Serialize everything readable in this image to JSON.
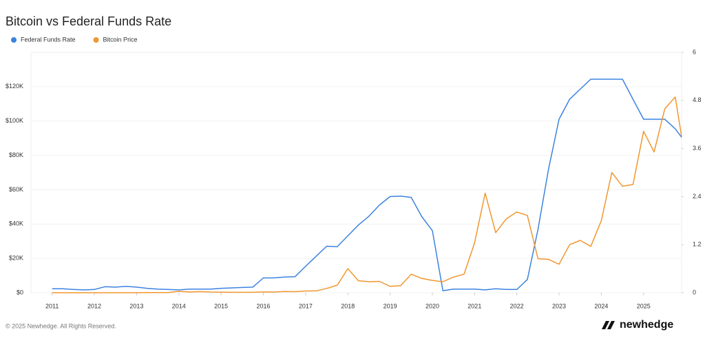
{
  "chart_data": {
    "type": "line",
    "title": "Bitcoin vs Federal Funds Rate",
    "x": [
      2011.0,
      2011.25,
      2011.5,
      2011.75,
      2012.0,
      2012.25,
      2012.5,
      2012.75,
      2013.0,
      2013.25,
      2013.5,
      2013.75,
      2014.0,
      2014.25,
      2014.5,
      2014.75,
      2015.0,
      2015.25,
      2015.5,
      2015.75,
      2016.0,
      2016.25,
      2016.5,
      2016.75,
      2017.0,
      2017.25,
      2017.5,
      2017.75,
      2018.0,
      2018.25,
      2018.5,
      2018.75,
      2019.0,
      2019.25,
      2019.5,
      2019.75,
      2020.0,
      2020.25,
      2020.5,
      2020.75,
      2021.0,
      2021.25,
      2021.5,
      2021.75,
      2022.0,
      2022.25,
      2022.5,
      2022.75,
      2023.0,
      2023.25,
      2023.5,
      2023.75,
      2024.0,
      2024.25,
      2024.5,
      2024.75,
      2025.0,
      2025.25,
      2025.5,
      2025.75,
      2025.9
    ],
    "series": [
      {
        "name": "Federal Funds Rate",
        "color": "#3b82e0",
        "axis": "y2",
        "values": [
          0.1,
          0.1,
          0.08,
          0.07,
          0.08,
          0.15,
          0.14,
          0.16,
          0.14,
          0.11,
          0.09,
          0.08,
          0.07,
          0.09,
          0.09,
          0.09,
          0.11,
          0.12,
          0.13,
          0.14,
          0.37,
          0.37,
          0.39,
          0.4,
          0.66,
          0.91,
          1.16,
          1.15,
          1.42,
          1.69,
          1.91,
          2.19,
          2.4,
          2.41,
          2.38,
          1.9,
          1.55,
          0.05,
          0.09,
          0.09,
          0.09,
          0.07,
          0.1,
          0.08,
          0.08,
          0.33,
          1.58,
          3.08,
          4.33,
          4.83,
          5.08,
          5.33,
          5.33,
          5.33,
          5.33,
          4.83,
          4.33,
          4.33,
          4.33,
          4.09,
          3.88
        ]
      },
      {
        "name": "Bitcoin Price",
        "color": "#f0962e",
        "values": [
          0.3,
          1,
          14,
          5,
          5,
          5,
          7,
          12,
          13,
          100,
          100,
          130,
          800,
          450,
          640,
          390,
          320,
          250,
          260,
          240,
          430,
          420,
          670,
          610,
          1000,
          1100,
          2500,
          4400,
          14000,
          7000,
          6400,
          6600,
          3700,
          4100,
          10800,
          8300,
          7200,
          6400,
          9100,
          10800,
          29000,
          58000,
          35000,
          43000,
          47000,
          45000,
          19800,
          19400,
          16600,
          28000,
          30500,
          27000,
          42000,
          70000,
          62000,
          63000,
          94000,
          82000,
          107000,
          114000,
          91000
        ]
      }
    ],
    "xlim": [
      2010.5,
      2025.9
    ],
    "xticks": [
      2011,
      2012,
      2013,
      2014,
      2015,
      2016,
      2017,
      2018,
      2019,
      2020,
      2021,
      2022,
      2023,
      2024,
      2025
    ],
    "ylim": [
      0,
      140000
    ],
    "yticks": [
      {
        "value": 0,
        "label": "$0"
      },
      {
        "value": 20000,
        "label": "$20K"
      },
      {
        "value": 40000,
        "label": "$40K"
      },
      {
        "value": 60000,
        "label": "$60K"
      },
      {
        "value": 80000,
        "label": "$80K"
      },
      {
        "value": 100000,
        "label": "$100K"
      },
      {
        "value": 120000,
        "label": "$120K"
      }
    ],
    "y2lim": [
      0,
      6
    ],
    "y2ticks": [
      0,
      1.2,
      2.4,
      3.6,
      4.8,
      6
    ],
    "grid": true
  },
  "footer": {
    "copyright": "© 2025 Newhedge. All Rights Reserved.",
    "brand": "newhedge"
  }
}
